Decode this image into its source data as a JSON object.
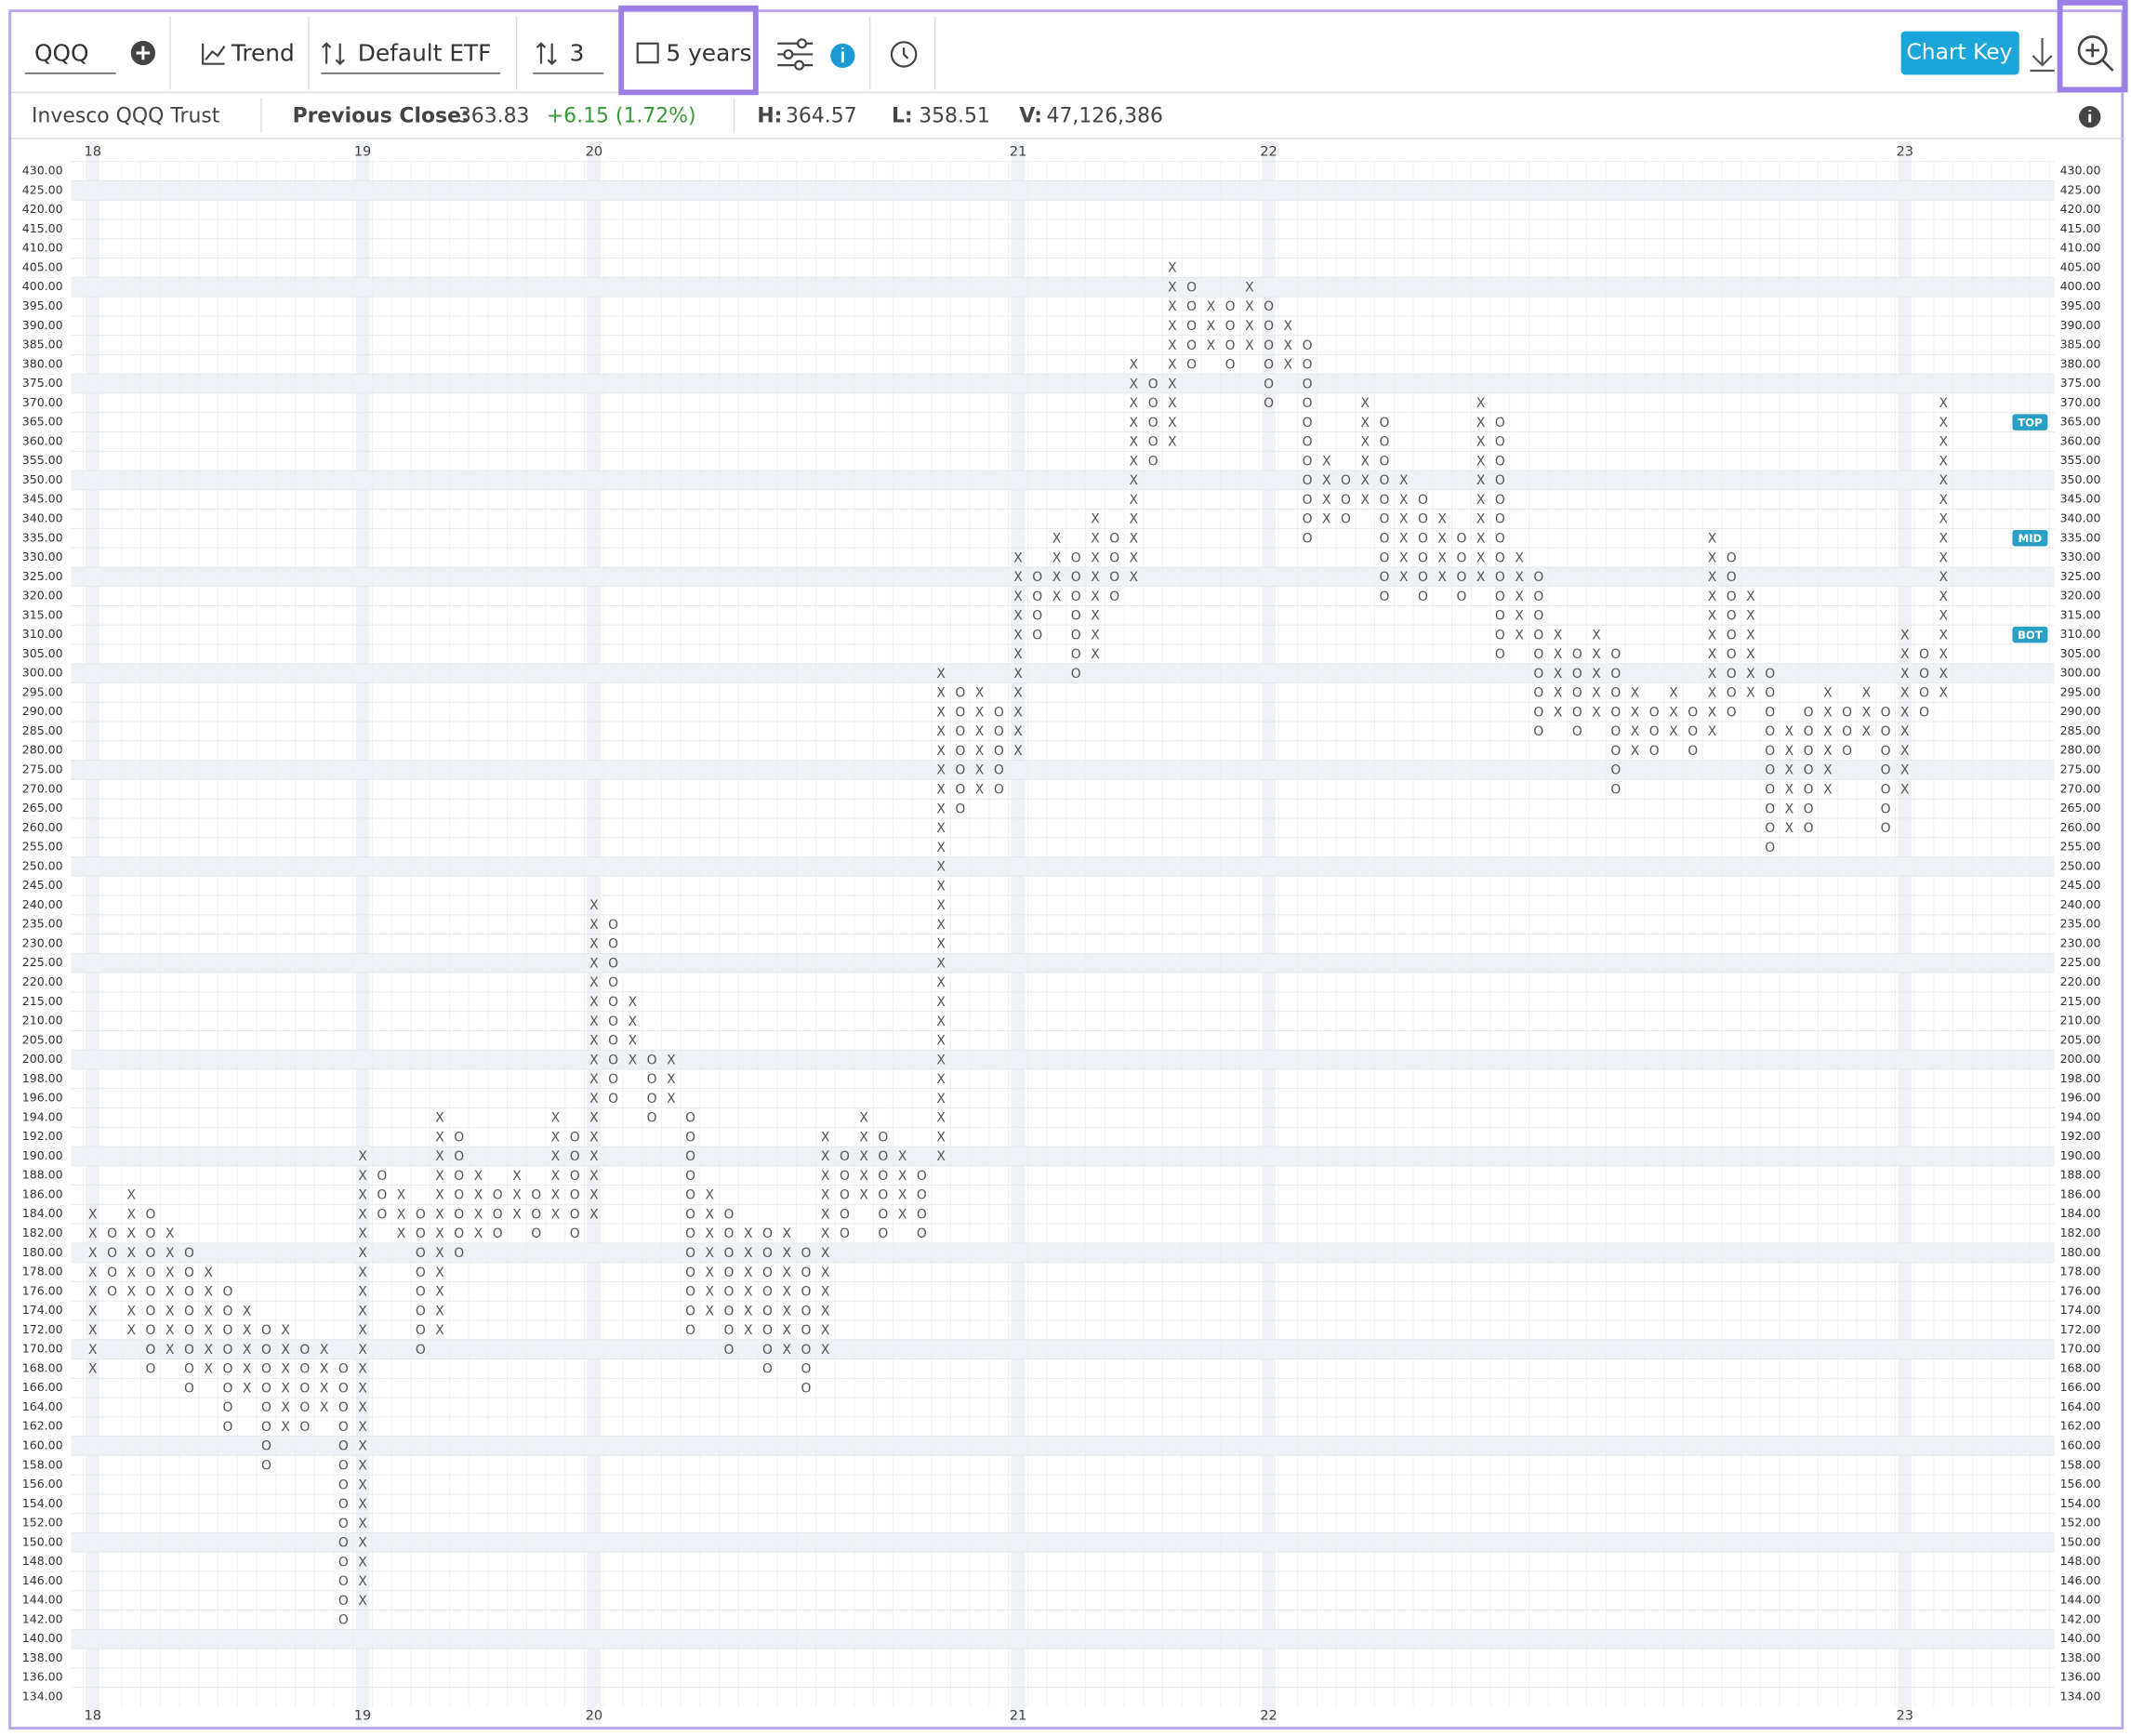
{
  "toolbar": {
    "symbol": "QQQ",
    "trend": "Trend",
    "style": "Default ETF",
    "reversal": "3",
    "period": "5 years",
    "chart_key": "Chart Key"
  },
  "info": {
    "name": "Invesco QQQ Trust",
    "close_label": "Previous Close:",
    "close": "363.83",
    "change": "+6.15 (1.72%)",
    "high_label": "H:",
    "high": "364.57",
    "low_label": "L:",
    "low": "358.51",
    "volume_label": "V:",
    "volume": "47,126,386"
  },
  "chart_data": {
    "type": "point-and-figure",
    "ylim": [
      134,
      430
    ],
    "yticks": [
      {
        "value": 430,
        "label": "430.00"
      },
      {
        "value": 425,
        "label": "425.00"
      },
      {
        "value": 420,
        "label": "420.00"
      },
      {
        "value": 415,
        "label": "415.00"
      },
      {
        "value": 410,
        "label": "410.00"
      },
      {
        "value": 405,
        "label": "405.00"
      },
      {
        "value": 400,
        "label": "400.00"
      },
      {
        "value": 395,
        "label": "395.00"
      },
      {
        "value": 390,
        "label": "390.00"
      },
      {
        "value": 385,
        "label": "385.00"
      },
      {
        "value": 380,
        "label": "380.00"
      },
      {
        "value": 375,
        "label": "375.00"
      },
      {
        "value": 370,
        "label": "370.00"
      },
      {
        "value": 365,
        "label": "365.00"
      },
      {
        "value": 360,
        "label": "360.00"
      },
      {
        "value": 355,
        "label": "355.00"
      },
      {
        "value": 350,
        "label": "350.00"
      },
      {
        "value": 345,
        "label": "345.00"
      },
      {
        "value": 340,
        "label": "340.00"
      },
      {
        "value": 335,
        "label": "335.00"
      },
      {
        "value": 330,
        "label": "330.00"
      },
      {
        "value": 325,
        "label": "325.00"
      },
      {
        "value": 320,
        "label": "320.00"
      },
      {
        "value": 315,
        "label": "315.00"
      },
      {
        "value": 310,
        "label": "310.00"
      },
      {
        "value": 305,
        "label": "305.00"
      },
      {
        "value": 300,
        "label": "300.00"
      },
      {
        "value": 295,
        "label": "295.00"
      },
      {
        "value": 290,
        "label": "290.00"
      },
      {
        "value": 285,
        "label": "285.00"
      },
      {
        "value": 280,
        "label": "280.00"
      },
      {
        "value": 275,
        "label": "275.00"
      },
      {
        "value": 270,
        "label": "270.00"
      },
      {
        "value": 265,
        "label": "265.00"
      },
      {
        "value": 260,
        "label": "260.00"
      },
      {
        "value": 255,
        "label": "255.00"
      },
      {
        "value": 250,
        "label": "250.00"
      },
      {
        "value": 245,
        "label": "245.00"
      },
      {
        "value": 240,
        "label": "240.00"
      },
      {
        "value": 235,
        "label": "235.00"
      },
      {
        "value": 230,
        "label": "230.00"
      },
      {
        "value": 225,
        "label": "225.00"
      },
      {
        "value": 220,
        "label": "220.00"
      },
      {
        "value": 215,
        "label": "215.00"
      },
      {
        "value": 210,
        "label": "210.00"
      },
      {
        "value": 205,
        "label": "205.00"
      },
      {
        "value": 200,
        "label": "200.00"
      },
      {
        "value": 198,
        "label": "198.00"
      },
      {
        "value": 196,
        "label": "196.00"
      },
      {
        "value": 194,
        "label": "194.00"
      },
      {
        "value": 192,
        "label": "192.00"
      },
      {
        "value": 190,
        "label": "190.00"
      },
      {
        "value": 188,
        "label": "188.00"
      },
      {
        "value": 186,
        "label": "186.00"
      },
      {
        "value": 184,
        "label": "184.00"
      },
      {
        "value": 182,
        "label": "182.00"
      },
      {
        "value": 180,
        "label": "180.00"
      },
      {
        "value": 178,
        "label": "178.00"
      },
      {
        "value": 176,
        "label": "176.00"
      },
      {
        "value": 174,
        "label": "174.00"
      },
      {
        "value": 172,
        "label": "172.00"
      },
      {
        "value": 170,
        "label": "170.00"
      },
      {
        "value": 168,
        "label": "168.00"
      },
      {
        "value": 166,
        "label": "166.00"
      },
      {
        "value": 164,
        "label": "164.00"
      },
      {
        "value": 162,
        "label": "162.00"
      },
      {
        "value": 160,
        "label": "160.00"
      },
      {
        "value": 158,
        "label": "158.00"
      },
      {
        "value": 156,
        "label": "156.00"
      },
      {
        "value": 154,
        "label": "154.00"
      },
      {
        "value": 152,
        "label": "152.00"
      },
      {
        "value": 150,
        "label": "150.00"
      },
      {
        "value": 148,
        "label": "148.00"
      },
      {
        "value": 146,
        "label": "146.00"
      },
      {
        "value": 144,
        "label": "144.00"
      },
      {
        "value": 142,
        "label": "142.00"
      },
      {
        "value": 140,
        "label": "140.00"
      },
      {
        "value": 138,
        "label": "138.00"
      },
      {
        "value": 136,
        "label": "136.00"
      },
      {
        "value": 134,
        "label": "134.00"
      }
    ],
    "x_labels": [
      {
        "column": 0,
        "label": "18"
      },
      {
        "column": 14,
        "label": "19"
      },
      {
        "column": 26,
        "label": "20"
      },
      {
        "column": 48,
        "label": "21"
      },
      {
        "column": 61,
        "label": "22"
      },
      {
        "column": 94,
        "label": "23"
      }
    ],
    "columns": [
      {
        "type": "X",
        "from": 168,
        "to": 184
      },
      {
        "type": "O",
        "from": 176,
        "to": 182
      },
      {
        "type": "X",
        "from": 172,
        "to": 186
      },
      {
        "type": "O",
        "from": 168,
        "to": 184
      },
      {
        "type": "X",
        "from": 170,
        "to": 182
      },
      {
        "type": "O",
        "from": 166,
        "to": 180
      },
      {
        "type": "X",
        "from": 168,
        "to": 178
      },
      {
        "type": "O",
        "from": 162,
        "to": 176
      },
      {
        "type": "X",
        "from": 166,
        "to": 174
      },
      {
        "type": "O",
        "from": 158,
        "to": 172
      },
      {
        "type": "X",
        "from": 162,
        "to": 172
      },
      {
        "type": "O",
        "from": 162,
        "to": 170
      },
      {
        "type": "X",
        "from": 164,
        "to": 170
      },
      {
        "type": "O",
        "from": 142,
        "to": 168
      },
      {
        "type": "X",
        "from": 144,
        "to": 190
      },
      {
        "type": "O",
        "from": 184,
        "to": 188
      },
      {
        "type": "X",
        "from": 182,
        "to": 186
      },
      {
        "type": "O",
        "from": 170,
        "to": 184
      },
      {
        "type": "X",
        "from": 172,
        "to": 194
      },
      {
        "type": "O",
        "from": 180,
        "to": 192
      },
      {
        "type": "X",
        "from": 182,
        "to": 188
      },
      {
        "type": "O",
        "from": 182,
        "to": 186
      },
      {
        "type": "X",
        "from": 184,
        "to": 188
      },
      {
        "type": "O",
        "from": 182,
        "to": 186
      },
      {
        "type": "X",
        "from": 184,
        "to": 194
      },
      {
        "type": "O",
        "from": 182,
        "to": 192
      },
      {
        "type": "X",
        "from": 184,
        "to": 240
      },
      {
        "type": "O",
        "from": 196,
        "to": 235
      },
      {
        "type": "X",
        "from": 200,
        "to": 215
      },
      {
        "type": "O",
        "from": 194,
        "to": 200
      },
      {
        "type": "X",
        "from": 196,
        "to": 200
      },
      {
        "type": "O",
        "from": 172,
        "to": 194
      },
      {
        "type": "X",
        "from": 174,
        "to": 186
      },
      {
        "type": "O",
        "from": 170,
        "to": 184
      },
      {
        "type": "X",
        "from": 172,
        "to": 182
      },
      {
        "type": "O",
        "from": 168,
        "to": 182
      },
      {
        "type": "X",
        "from": 170,
        "to": 182
      },
      {
        "type": "O",
        "from": 166,
        "to": 180
      },
      {
        "type": "X",
        "from": 170,
        "to": 192
      },
      {
        "type": "O",
        "from": 182,
        "to": 190
      },
      {
        "type": "X",
        "from": 186,
        "to": 194
      },
      {
        "type": "O",
        "from": 182,
        "to": 192
      },
      {
        "type": "X",
        "from": 184,
        "to": 190
      },
      {
        "type": "O",
        "from": 182,
        "to": 188
      },
      {
        "type": "X",
        "from": 190,
        "to": 300
      },
      {
        "type": "O",
        "from": 265,
        "to": 295
      },
      {
        "type": "X",
        "from": 270,
        "to": 295
      },
      {
        "type": "O",
        "from": 270,
        "to": 290
      },
      {
        "type": "X",
        "from": 280,
        "to": 330
      },
      {
        "type": "O",
        "from": 310,
        "to": 325
      },
      {
        "type": "X",
        "from": 320,
        "to": 335
      },
      {
        "type": "O",
        "from": 300,
        "to": 330
      },
      {
        "type": "X",
        "from": 305,
        "to": 340
      },
      {
        "type": "O",
        "from": 320,
        "to": 335
      },
      {
        "type": "X",
        "from": 325,
        "to": 380
      },
      {
        "type": "O",
        "from": 355,
        "to": 375
      },
      {
        "type": "X",
        "from": 360,
        "to": 405
      },
      {
        "type": "O",
        "from": 380,
        "to": 400
      },
      {
        "type": "X",
        "from": 385,
        "to": 395
      },
      {
        "type": "O",
        "from": 380,
        "to": 395
      },
      {
        "type": "X",
        "from": 385,
        "to": 400
      },
      {
        "type": "O",
        "from": 370,
        "to": 395
      },
      {
        "type": "X",
        "from": 380,
        "to": 390
      },
      {
        "type": "O",
        "from": 335,
        "to": 385
      },
      {
        "type": "X",
        "from": 340,
        "to": 355
      },
      {
        "type": "O",
        "from": 340,
        "to": 350
      },
      {
        "type": "X",
        "from": 345,
        "to": 370
      },
      {
        "type": "O",
        "from": 320,
        "to": 365
      },
      {
        "type": "X",
        "from": 325,
        "to": 350
      },
      {
        "type": "O",
        "from": 320,
        "to": 345
      },
      {
        "type": "X",
        "from": 325,
        "to": 340
      },
      {
        "type": "O",
        "from": 320,
        "to": 335
      },
      {
        "type": "X",
        "from": 325,
        "to": 370
      },
      {
        "type": "O",
        "from": 305,
        "to": 365
      },
      {
        "type": "X",
        "from": 310,
        "to": 330
      },
      {
        "type": "O",
        "from": 285,
        "to": 325
      },
      {
        "type": "X",
        "from": 290,
        "to": 310
      },
      {
        "type": "O",
        "from": 285,
        "to": 305
      },
      {
        "type": "X",
        "from": 290,
        "to": 310
      },
      {
        "type": "O",
        "from": 270,
        "to": 305
      },
      {
        "type": "X",
        "from": 280,
        "to": 295
      },
      {
        "type": "O",
        "from": 280,
        "to": 290
      },
      {
        "type": "X",
        "from": 285,
        "to": 295
      },
      {
        "type": "O",
        "from": 280,
        "to": 290
      },
      {
        "type": "X",
        "from": 285,
        "to": 335
      },
      {
        "type": "O",
        "from": 290,
        "to": 330
      },
      {
        "type": "X",
        "from": 295,
        "to": 320
      },
      {
        "type": "O",
        "from": 255,
        "to": 300
      },
      {
        "type": "X",
        "from": 260,
        "to": 285
      },
      {
        "type": "O",
        "from": 260,
        "to": 290
      },
      {
        "type": "X",
        "from": 270,
        "to": 295
      },
      {
        "type": "O",
        "from": 280,
        "to": 290
      },
      {
        "type": "X",
        "from": 285,
        "to": 295
      },
      {
        "type": "O",
        "from": 260,
        "to": 290
      },
      {
        "type": "X",
        "from": 270,
        "to": 310
      },
      {
        "type": "O",
        "from": 290,
        "to": 305
      },
      {
        "type": "X",
        "from": 295,
        "to": 370
      }
    ],
    "levels": [
      {
        "label": "TOP",
        "value": 365
      },
      {
        "label": "MID",
        "value": 335
      },
      {
        "label": "BOT",
        "value": 310
      }
    ],
    "level_color": "#2a9fc4"
  }
}
